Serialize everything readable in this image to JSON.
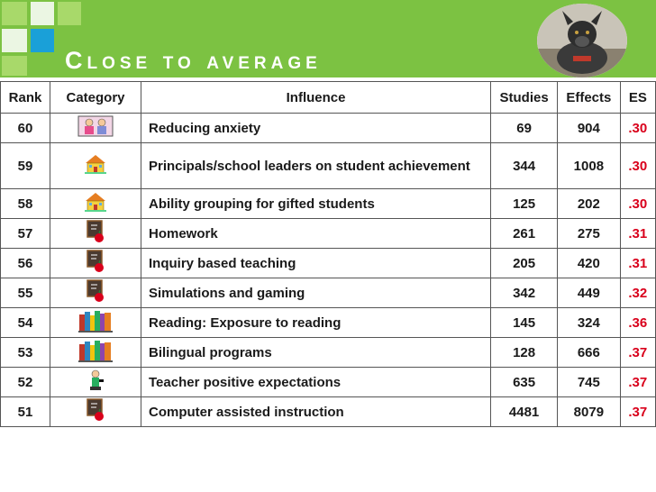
{
  "slide": {
    "title": "Close to average",
    "accent": "#7cc242",
    "es_color": "#d9001b"
  },
  "photo": {
    "icon": "dog-photo-icon"
  },
  "table": {
    "headers": [
      "Rank",
      "Category",
      "Influence",
      "Studies",
      "Effects",
      "ES"
    ],
    "rows": [
      {
        "rank": "60",
        "category_icon": "students-icon",
        "influence": "Reducing anxiety",
        "studies": "69",
        "effects": "904",
        "es": ".30"
      },
      {
        "rank": "59",
        "category_icon": "school-icon",
        "influence": "Principals/school leaders on student achievement",
        "studies": "344",
        "effects": "1008",
        "es": ".30"
      },
      {
        "rank": "58",
        "category_icon": "school-icon",
        "influence": "Ability grouping for gifted students",
        "studies": "125",
        "effects": "202",
        "es": ".30"
      },
      {
        "rank": "57",
        "category_icon": "chalkboard-apple-icon",
        "influence": "Homework",
        "studies": "261",
        "effects": "275",
        "es": ".31"
      },
      {
        "rank": "56",
        "category_icon": "chalkboard-apple-icon",
        "influence": "Inquiry based teaching",
        "studies": "205",
        "effects": "420",
        "es": ".31"
      },
      {
        "rank": "55",
        "category_icon": "chalkboard-apple-icon",
        "influence": "Simulations and gaming",
        "studies": "342",
        "effects": "449",
        "es": ".32"
      },
      {
        "rank": "54",
        "category_icon": "books-icon",
        "influence": "Reading: Exposure to reading",
        "studies": "145",
        "effects": "324",
        "es": ".36"
      },
      {
        "rank": "53",
        "category_icon": "books-icon",
        "influence": "Bilingual programs",
        "studies": "128",
        "effects": "666",
        "es": ".37"
      },
      {
        "rank": "52",
        "category_icon": "teacher-icon",
        "influence": "Teacher positive expectations",
        "studies": "635",
        "effects": "745",
        "es": ".37"
      },
      {
        "rank": "51",
        "category_icon": "chalkboard-apple-icon",
        "influence": "Computer assisted instruction",
        "studies": "4481",
        "effects": "8079",
        "es": ".37"
      }
    ]
  }
}
